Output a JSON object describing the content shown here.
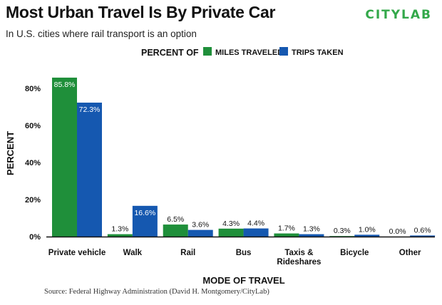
{
  "header": {
    "title": "Most Urban Travel Is By Private Car",
    "subtitle": "In U.S. cities where rail transport is an option",
    "logo_text": "CITYLAB"
  },
  "footer": {
    "source": "Source: Federal Highway Administration (David H. Montgomery/CityLab)"
  },
  "colors": {
    "miles": "#1f8f3a",
    "trips": "#1558b0",
    "logo": "#33a84a",
    "axis": "#111111"
  },
  "chart_data": {
    "type": "bar",
    "title": "Most Urban Travel Is By Private Car",
    "subtitle": "In U.S. cities where rail transport is an option",
    "xlabel": "MODE OF TRAVEL",
    "ylabel": "PERCENT",
    "legend_title": "PERCENT OF",
    "legend_position": "top",
    "ylim": [
      0,
      90
    ],
    "yticks": [
      0,
      20,
      40,
      60,
      80
    ],
    "ytick_labels": [
      "0%",
      "20%",
      "40%",
      "60%",
      "80%"
    ],
    "grid": false,
    "categories": [
      "Private vehicle",
      "Walk",
      "Rail",
      "Bus",
      "Taxis &\nRideshares",
      "Bicycle",
      "Other"
    ],
    "series": [
      {
        "name": "MILES TRAVELED",
        "values": [
          85.8,
          1.3,
          6.5,
          4.3,
          1.7,
          0.3,
          0.0
        ],
        "labels": [
          "85.8%",
          "1.3%",
          "6.5%",
          "4.3%",
          "1.7%",
          "0.3%",
          "0.0%"
        ]
      },
      {
        "name": "TRIPS TAKEN",
        "values": [
          72.3,
          16.6,
          3.6,
          4.4,
          1.3,
          1.0,
          0.6
        ],
        "labels": [
          "72.3%",
          "16.6%",
          "3.6%",
          "4.4%",
          "1.3%",
          "1.0%",
          "0.6%"
        ]
      }
    ]
  }
}
